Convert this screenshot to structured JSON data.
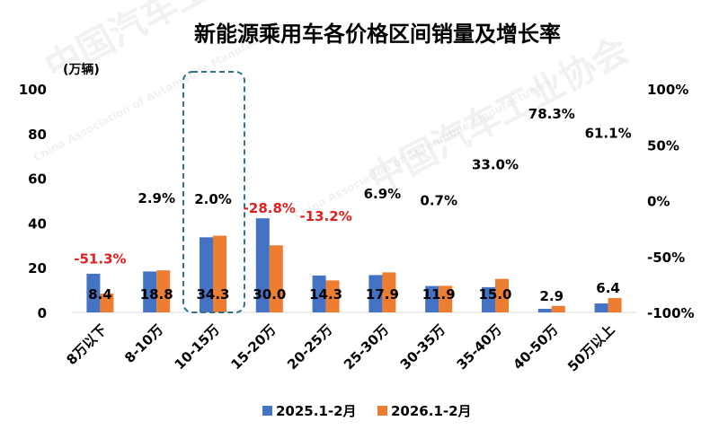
{
  "chart_data": {
    "type": "bar",
    "title": "新能源乘用车各价格区间销量及增长率",
    "ylabel": "(万辆)",
    "ylim": [
      0,
      100
    ],
    "left_ticks": [
      "0",
      "20",
      "40",
      "60",
      "80",
      "100"
    ],
    "y2lim": [
      -100,
      100
    ],
    "right_ticks": [
      "-100%",
      "-50%",
      "0%",
      "50%",
      "100%"
    ],
    "categories": [
      "8万以下",
      "8-10万",
      "10-15万",
      "15-20万",
      "20-25万",
      "25-30万",
      "30-35万",
      "35-40万",
      "40-50万",
      "50万以上"
    ],
    "series": [
      {
        "name": "2025.1-2月",
        "color": "#4472C4",
        "values": [
          17.3,
          18.3,
          33.6,
          42.1,
          16.5,
          16.7,
          11.8,
          11.3,
          1.6,
          4.0
        ]
      },
      {
        "name": "2026.1-2月",
        "color": "#ED7D31",
        "values": [
          8.4,
          18.8,
          34.3,
          30.0,
          14.3,
          17.9,
          11.9,
          15.0,
          2.9,
          6.4
        ]
      }
    ],
    "value_labels": [
      "8.4",
      "18.8",
      "34.3",
      "30.0",
      "14.3",
      "17.9",
      "11.9",
      "15.0",
      "2.9",
      "6.4"
    ],
    "growth_labels": [
      "-51.3%",
      "2.9%",
      "2.0%",
      "-28.8%",
      "-13.2%",
      "6.9%",
      "0.7%",
      "33.0%",
      "78.3%",
      "61.1%"
    ],
    "growth_values": [
      -51.3,
      2.9,
      2.0,
      -28.8,
      -13.2,
      6.9,
      0.7,
      33.0,
      78.3,
      61.1
    ],
    "negative_color": "#E02020",
    "positive_color": "#000000",
    "highlight_category": "10-15万",
    "highlight_color": "#31708F",
    "legend_position": "bottom"
  },
  "watermark": {
    "cn": "中国汽车工业协会",
    "en": "China Association of Automobile Manufacturers"
  }
}
